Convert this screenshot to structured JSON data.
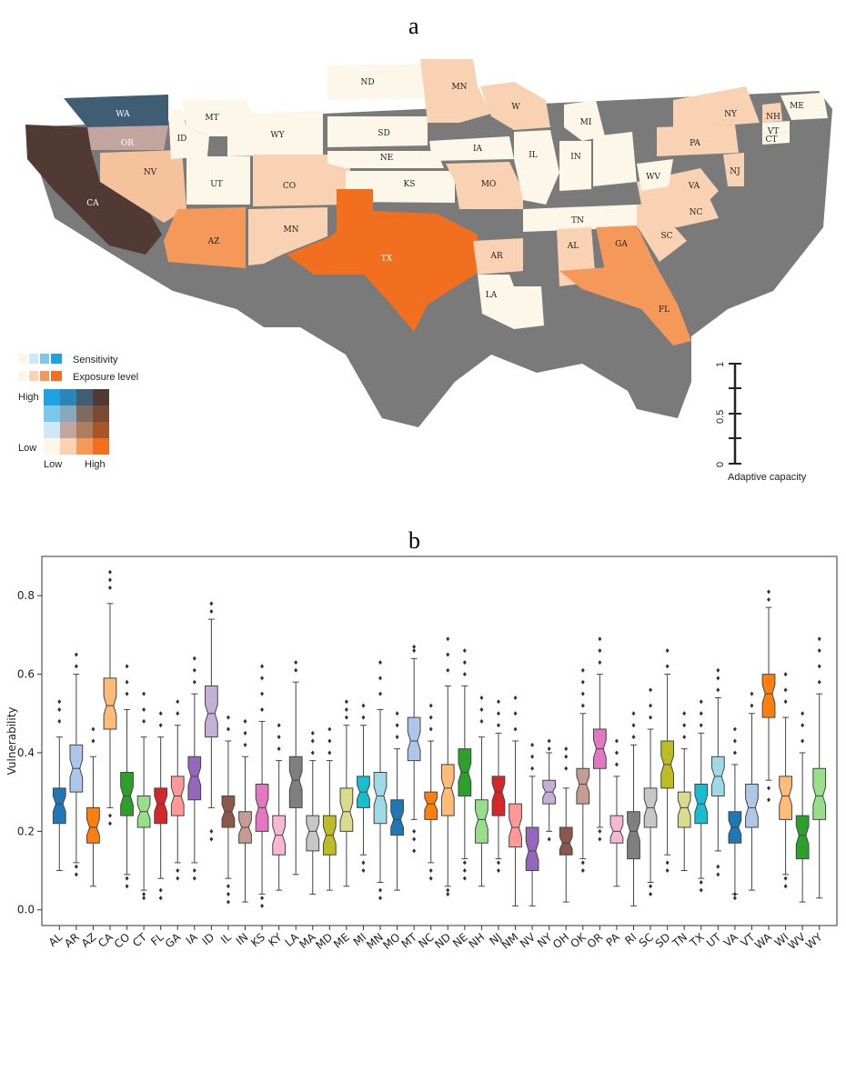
{
  "panels": {
    "a": "a",
    "b": "b"
  },
  "map": {
    "legend": {
      "sensitivity": "Sensitivity",
      "exposure": "Exposure level",
      "high": "High",
      "low_y": "Low",
      "low_x": "Low",
      "high_x": "High"
    },
    "scale": {
      "ticks": [
        "0",
        "0.5",
        "1"
      ],
      "title": "Adaptive capacity"
    },
    "colors": {
      "background_shadow": "#7a7a7a",
      "cream": "#fdf7ea",
      "light_peach": "#f8d2b2",
      "peach": "#f6c29b",
      "orange": "#f4995a",
      "deep_orange": "#f16f1e",
      "dark_brown": "#503a33",
      "slate_blue": "#3f5d73",
      "mauve": "#c3a59f"
    },
    "states": {
      "WA": "WA",
      "OR": "OR",
      "CA": "CA",
      "NV": "NV",
      "ID": "ID",
      "MT": "MT",
      "WY": "WY",
      "UT": "UT",
      "CO": "CO",
      "AZ": "AZ",
      "MN_sw": "MN",
      "ND": "ND",
      "SD": "SD",
      "NE": "NE",
      "KS": "KS",
      "TX": "TX",
      "MN": "MN",
      "IA": "IA",
      "MO": "MO",
      "AR": "AR",
      "LA": "LA",
      "W": "W",
      "IL": "IL",
      "MI": "MI",
      "IN": "IN",
      "TN": "TN",
      "AL": "AL",
      "GA": "GA",
      "FL": "FL",
      "SC": "SC",
      "NC": "NC",
      "VA": "VA",
      "WV": "WV",
      "PA": "PA",
      "NY": "NY",
      "NJ": "NJ",
      "NH": "NH",
      "VT": "VT",
      "CT": "CT",
      "ME": "ME"
    }
  },
  "chart_data": {
    "type": "box",
    "title": "",
    "xlabel": "",
    "ylabel": "Vulnerability",
    "ylim": [
      -0.04,
      0.9
    ],
    "yticks": [
      0.0,
      0.2,
      0.4,
      0.6,
      0.8
    ],
    "ytick_labels": [
      "0.0",
      "0.2",
      "0.4",
      "0.6",
      "0.8"
    ],
    "categories": [
      "AL",
      "AR",
      "AZ",
      "CA",
      "CO",
      "CT",
      "FL",
      "GA",
      "IA",
      "ID",
      "IL",
      "IN",
      "KS",
      "KY",
      "LA",
      "MA",
      "MD",
      "ME",
      "MI",
      "MN",
      "MO",
      "MT",
      "NC",
      "ND",
      "NE",
      "NH",
      "NJ",
      "NM",
      "NV",
      "NY",
      "OH",
      "OK",
      "OR",
      "PA",
      "RI",
      "SC",
      "SD",
      "TN",
      "TX",
      "UT",
      "VA",
      "VT",
      "WA",
      "WI",
      "WV",
      "WY"
    ],
    "colors": [
      "#1f77b4",
      "#aec7e8",
      "#ff7f0e",
      "#ffbb78",
      "#2ca02c",
      "#98df8a",
      "#d62728",
      "#ff9896",
      "#9467bd",
      "#c5b0d5",
      "#8c564b",
      "#c49c94",
      "#e377c2",
      "#f7b6d2",
      "#7f7f7f",
      "#c7c7c7",
      "#bcbd22",
      "#dbdb8d",
      "#17becf",
      "#9edae5",
      "#1f77b4",
      "#aec7e8",
      "#ff7f0e",
      "#ffbb78",
      "#2ca02c",
      "#98df8a",
      "#d62728",
      "#ff9896",
      "#9467bd",
      "#c5b0d5",
      "#8c564b",
      "#c49c94",
      "#e377c2",
      "#f7b6d2",
      "#7f7f7f",
      "#c7c7c7",
      "#bcbd22",
      "#dbdb8d",
      "#17becf",
      "#9edae5",
      "#1f77b4",
      "#aec7e8",
      "#ff7f0e",
      "#ffbb78",
      "#2ca02c",
      "#98df8a"
    ],
    "whisker_low": [
      0.1,
      0.12,
      0.06,
      0.26,
      0.09,
      0.05,
      0.08,
      0.12,
      0.12,
      0.26,
      0.08,
      0.02,
      0.04,
      0.05,
      0.09,
      0.04,
      0.05,
      0.06,
      0.14,
      0.07,
      0.05,
      0.23,
      0.12,
      0.06,
      0.13,
      0.06,
      0.13,
      0.01,
      0.01,
      0.2,
      0.02,
      0.13,
      0.21,
      0.06,
      0.01,
      0.07,
      0.14,
      0.1,
      0.08,
      0.15,
      0.04,
      0.05,
      0.33,
      0.09,
      0.02,
      0.03
    ],
    "q1": [
      0.22,
      0.3,
      0.17,
      0.46,
      0.24,
      0.21,
      0.22,
      0.24,
      0.28,
      0.44,
      0.21,
      0.17,
      0.2,
      0.14,
      0.26,
      0.15,
      0.14,
      0.2,
      0.26,
      0.22,
      0.19,
      0.38,
      0.23,
      0.24,
      0.29,
      0.17,
      0.24,
      0.16,
      0.1,
      0.27,
      0.14,
      0.27,
      0.36,
      0.17,
      0.13,
      0.21,
      0.31,
      0.21,
      0.22,
      0.29,
      0.17,
      0.21,
      0.49,
      0.23,
      0.13,
      0.23
    ],
    "median": [
      0.27,
      0.36,
      0.21,
      0.52,
      0.29,
      0.25,
      0.27,
      0.29,
      0.34,
      0.5,
      0.25,
      0.21,
      0.26,
      0.19,
      0.33,
      0.2,
      0.19,
      0.25,
      0.3,
      0.29,
      0.23,
      0.43,
      0.27,
      0.31,
      0.35,
      0.23,
      0.3,
      0.21,
      0.15,
      0.3,
      0.17,
      0.32,
      0.41,
      0.2,
      0.2,
      0.26,
      0.37,
      0.26,
      0.27,
      0.34,
      0.21,
      0.26,
      0.55,
      0.29,
      0.19,
      0.29
    ],
    "q3": [
      0.31,
      0.42,
      0.26,
      0.59,
      0.35,
      0.29,
      0.31,
      0.34,
      0.39,
      0.57,
      0.29,
      0.25,
      0.32,
      0.24,
      0.39,
      0.24,
      0.24,
      0.31,
      0.34,
      0.35,
      0.28,
      0.49,
      0.3,
      0.37,
      0.41,
      0.28,
      0.34,
      0.27,
      0.21,
      0.33,
      0.21,
      0.36,
      0.46,
      0.24,
      0.25,
      0.31,
      0.43,
      0.3,
      0.32,
      0.39,
      0.25,
      0.32,
      0.6,
      0.34,
      0.24,
      0.36
    ],
    "whisker_high": [
      0.44,
      0.6,
      0.39,
      0.78,
      0.51,
      0.44,
      0.44,
      0.47,
      0.55,
      0.74,
      0.43,
      0.39,
      0.48,
      0.38,
      0.58,
      0.38,
      0.38,
      0.47,
      0.47,
      0.51,
      0.41,
      0.64,
      0.43,
      0.57,
      0.57,
      0.44,
      0.45,
      0.43,
      0.34,
      0.4,
      0.31,
      0.5,
      0.6,
      0.34,
      0.42,
      0.46,
      0.6,
      0.41,
      0.45,
      0.54,
      0.37,
      0.5,
      0.77,
      0.49,
      0.4,
      0.55
    ],
    "outliers_high": [
      [
        0.48,
        0.51,
        0.53
      ],
      [
        0.62,
        0.65
      ],
      [
        0.43,
        0.46
      ],
      [
        0.82,
        0.84,
        0.86
      ],
      [
        0.55,
        0.58,
        0.62
      ],
      [
        0.48,
        0.51,
        0.55
      ],
      [
        0.47,
        0.5
      ],
      [
        0.5,
        0.53
      ],
      [
        0.58,
        0.61,
        0.64
      ],
      [
        0.76,
        0.78
      ],
      [
        0.46,
        0.49
      ],
      [
        0.42,
        0.45,
        0.48
      ],
      [
        0.51,
        0.55,
        0.59,
        0.62
      ],
      [
        0.41,
        0.44,
        0.47
      ],
      [
        0.61,
        0.63
      ],
      [
        0.4,
        0.43,
        0.45
      ],
      [
        0.4,
        0.43,
        0.46
      ],
      [
        0.49,
        0.51,
        0.53
      ],
      [
        0.49,
        0.52
      ],
      [
        0.55,
        0.59,
        0.63
      ],
      [
        0.44,
        0.47,
        0.5
      ],
      [
        0.66,
        0.67
      ],
      [
        0.46,
        0.49,
        0.52
      ],
      [
        0.61,
        0.65,
        0.69
      ],
      [
        0.6,
        0.63,
        0.66
      ],
      [
        0.48,
        0.51,
        0.54
      ],
      [
        0.47,
        0.5,
        0.53
      ],
      [
        0.46,
        0.5,
        0.54
      ],
      [
        0.36,
        0.39,
        0.42
      ],
      [
        0.41,
        0.43
      ],
      [
        0.36,
        0.39,
        0.41
      ],
      [
        0.52,
        0.55,
        0.58,
        0.61
      ],
      [
        0.63,
        0.66,
        0.69
      ],
      [
        0.37,
        0.4,
        0.43
      ],
      [
        0.44,
        0.47,
        0.5
      ],
      [
        0.49,
        0.52,
        0.56
      ],
      [
        0.62,
        0.66
      ],
      [
        0.44,
        0.47,
        0.5
      ],
      [
        0.47,
        0.5,
        0.53
      ],
      [
        0.56,
        0.59,
        0.61
      ],
      [
        0.4,
        0.43,
        0.46
      ],
      [
        0.52,
        0.55
      ],
      [
        0.79,
        0.81
      ],
      [
        0.53,
        0.56,
        0.6
      ],
      [
        0.43,
        0.47,
        0.5
      ],
      [
        0.58,
        0.62,
        0.66,
        0.69
      ]
    ],
    "outliers_low": [
      [],
      [
        0.09,
        0.11
      ],
      [],
      [
        0.22,
        0.24
      ],
      [
        0.06,
        0.08
      ],
      [
        0.03,
        0.04
      ],
      [
        0.03,
        0.05
      ],
      [
        0.08,
        0.1
      ],
      [
        0.08,
        0.1
      ],
      [
        0.18,
        0.2
      ],
      [
        0.02,
        0.04,
        0.06
      ],
      [],
      [
        0.01,
        0.03
      ],
      [],
      [],
      [],
      [],
      [],
      [
        0.1,
        0.12
      ],
      [
        0.03,
        0.05
      ],
      [],
      [
        0.15,
        0.18,
        0.2
      ],
      [
        0.08,
        0.1
      ],
      [
        0.04,
        0.05
      ],
      [
        0.08,
        0.1,
        0.12
      ],
      [],
      [
        0.1,
        0.12
      ],
      [],
      [],
      [
        0.18
      ],
      [],
      [
        0.1,
        0.12
      ],
      [
        0.18,
        0.2
      ],
      [],
      [],
      [
        0.04,
        0.06
      ],
      [
        0.1,
        0.12
      ],
      [],
      [
        0.05,
        0.07
      ],
      [
        0.09,
        0.11
      ],
      [
        0.03,
        0.04
      ],
      [],
      [
        0.28,
        0.31
      ],
      [
        0.06,
        0.08
      ],
      [],
      []
    ]
  }
}
